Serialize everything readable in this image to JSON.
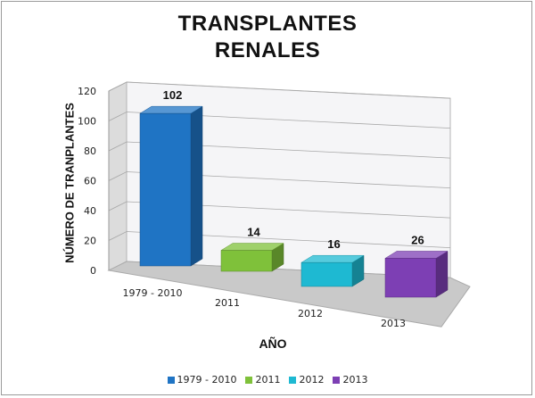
{
  "chart_data": {
    "type": "bar",
    "title": [
      "TRANSPLANTES",
      "RENALES"
    ],
    "xlabel": "AÑO",
    "ylabel": "NÚMERO DE TRANPLANTES",
    "categories": [
      "1979 - 2010",
      "2011",
      "2012",
      "2013"
    ],
    "values": [
      102,
      14,
      16,
      26
    ],
    "colors": [
      "#1f74c4",
      "#7fc13a",
      "#1eb9d2",
      "#7d3fb4"
    ],
    "ylim": [
      0,
      120
    ],
    "yticks": [
      0,
      20,
      40,
      60,
      80,
      100,
      120
    ],
    "grid": true,
    "legend": "bottom",
    "data_labels": true
  }
}
